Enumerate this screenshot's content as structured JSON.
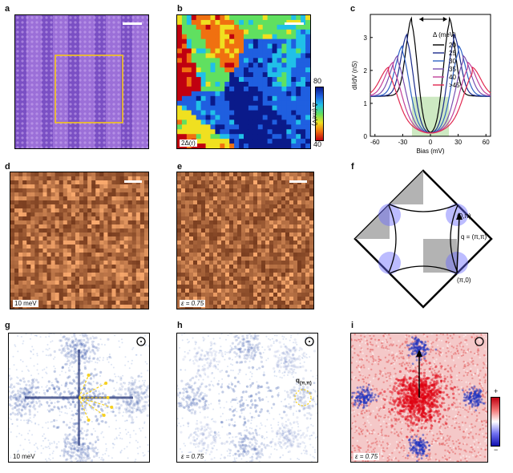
{
  "panels": {
    "a": {
      "label": "a"
    },
    "b": {
      "label": "b",
      "corner": "2Δ(r)",
      "colorbar": {
        "max": "80",
        "min": "40",
        "title": "Δ (meV)"
      }
    },
    "c": {
      "label": "c"
    },
    "d": {
      "label": "d",
      "corner": "10 meV"
    },
    "e": {
      "label": "e",
      "corner": "ε = 0.75"
    },
    "f": {
      "label": "f",
      "label_0pi": "(0,π)",
      "label_pi0": "(π,0)",
      "q_label": "q = (π,π)"
    },
    "g": {
      "label": "g",
      "corner": "10 meV"
    },
    "h": {
      "label": "h",
      "corner": "ε = 0.75",
      "q_label": "q",
      "q_sub": "(π,π)"
    },
    "i": {
      "label": "i",
      "corner": "ε = 0.75",
      "cb_plus": "+",
      "cb_minus": "−"
    }
  },
  "chart_data": {
    "type": "line",
    "xlabel": "Bias (mV)",
    "ylabel": "dI/dV (nS)",
    "xlim": [
      -65,
      65
    ],
    "ylim": [
      0,
      3.7
    ],
    "xticks": [
      -60,
      -30,
      0,
      30,
      60
    ],
    "yticks": [
      0,
      1,
      2,
      3
    ],
    "legend_title": "Δ (meV)",
    "series": [
      {
        "name": "20",
        "gap": 20,
        "peak": 3.45,
        "color": "#000000"
      },
      {
        "name": "25",
        "gap": 25,
        "peak": 2.95,
        "color": "#1a2a8c"
      },
      {
        "name": "30",
        "gap": 30,
        "peak": 2.6,
        "color": "#2f62c4"
      },
      {
        "name": "35",
        "gap": 35,
        "peak": 2.3,
        "color": "#7a4fb0"
      },
      {
        "name": "40",
        "gap": 40,
        "peak": 2.1,
        "color": "#c2409a"
      },
      {
        "name": ">45",
        "gap": 45,
        "peak": 1.95,
        "color": "#e0284f"
      }
    ]
  }
}
